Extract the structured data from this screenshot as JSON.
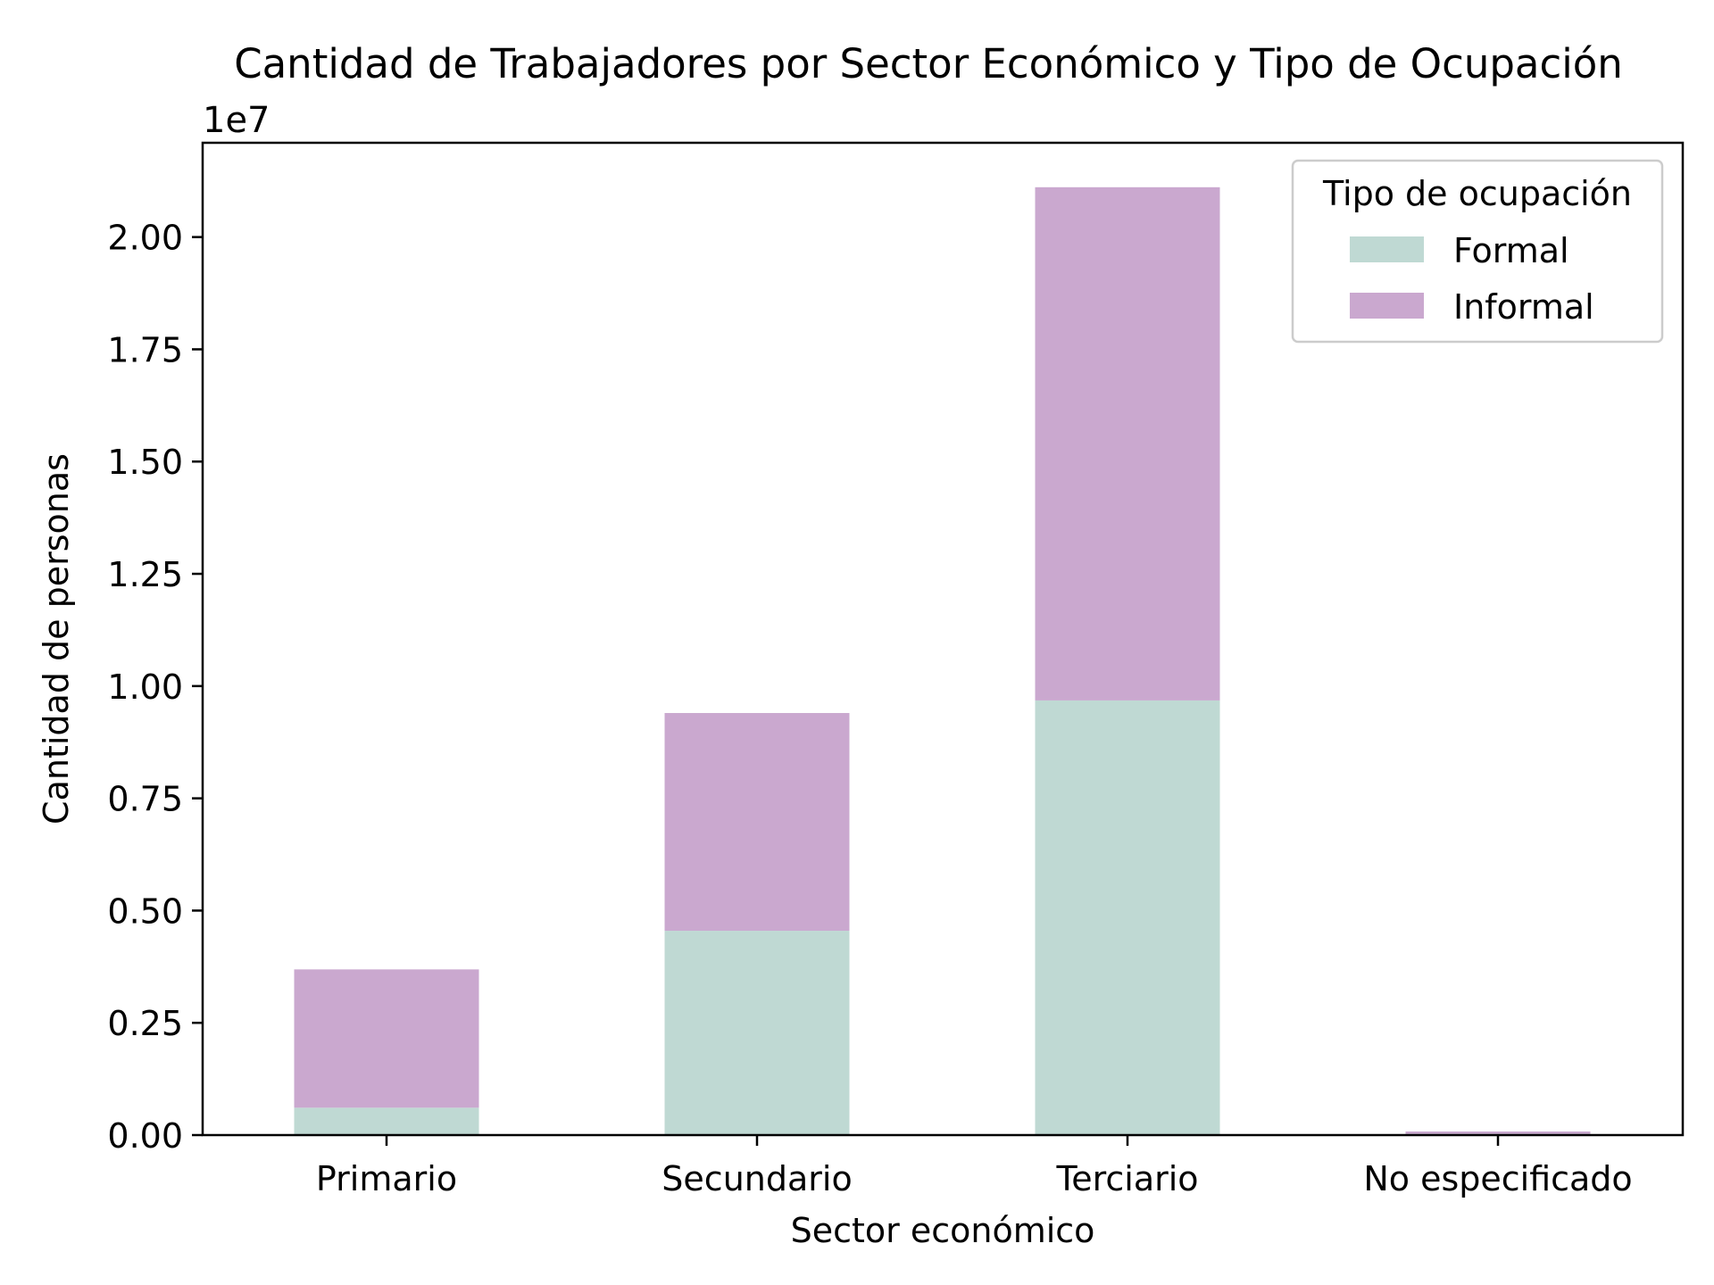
{
  "chart_data": {
    "type": "bar",
    "stacked": true,
    "title": "Cantidad de Trabajadores por Sector Económico y Tipo de Ocupación",
    "xlabel": "Sector económico",
    "ylabel": "Cantidad de personas",
    "y_offset_label": "1e7",
    "y_scale": 10000000,
    "ylim": [
      0,
      22100000
    ],
    "y_ticks": [
      0,
      2500000,
      5000000,
      7500000,
      10000000,
      12500000,
      15000000,
      17500000,
      20000000
    ],
    "y_tick_labels": [
      "0.00",
      "0.25",
      "0.50",
      "0.75",
      "1.00",
      "1.25",
      "1.50",
      "1.75",
      "2.00"
    ],
    "categories": [
      "Primario",
      "Secundario",
      "Terciario",
      "No especificado"
    ],
    "series": [
      {
        "name": "Formal",
        "color": "#bfd9d3",
        "values": [
          610000,
          4550000,
          9680000,
          25000
        ]
      },
      {
        "name": "Informal",
        "color": "#caa8cf",
        "values": [
          3080000,
          4850000,
          11430000,
          55000
        ]
      }
    ],
    "legend": {
      "title": "Tipo de ocupación",
      "position": "top-right"
    },
    "grid": false
  }
}
